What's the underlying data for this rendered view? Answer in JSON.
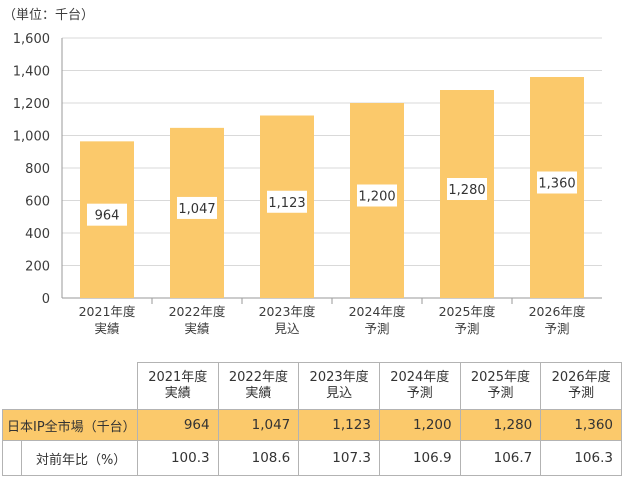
{
  "chart_data": {
    "type": "bar",
    "unit_label": "（単位：千台）",
    "categories": [
      [
        "2021年度",
        "実績"
      ],
      [
        "2022年度",
        "実績"
      ],
      [
        "2023年度",
        "見込"
      ],
      [
        "2024年度",
        "予測"
      ],
      [
        "2025年度",
        "予測"
      ],
      [
        "2026年度",
        "予測"
      ]
    ],
    "values": [
      964,
      1047,
      1123,
      1200,
      1280,
      1360
    ],
    "value_labels": [
      "964",
      "1,047",
      "1,123",
      "1,200",
      "1,280",
      "1,360"
    ],
    "ylim": [
      0,
      1600
    ],
    "yticks": [
      0,
      200,
      400,
      600,
      800,
      1000,
      1200,
      1400,
      1600
    ],
    "ytick_labels": [
      "0",
      "200",
      "400",
      "600",
      "800",
      "1,000",
      "1,200",
      "1,400",
      "1,600"
    ],
    "grid": true,
    "bar_color": "#fbc96b"
  },
  "table": {
    "headers": [
      [
        "2021年度",
        "実績"
      ],
      [
        "2022年度",
        "実績"
      ],
      [
        "2023年度",
        "見込"
      ],
      [
        "2024年度",
        "予測"
      ],
      [
        "2025年度",
        "予測"
      ],
      [
        "2026年度",
        "予測"
      ]
    ],
    "rows": [
      {
        "label": "日本IP全市場（千台）",
        "values": [
          "964",
          "1,047",
          "1,123",
          "1,200",
          "1,280",
          "1,360"
        ]
      },
      {
        "label": "対前年比（%）",
        "values": [
          "100.3",
          "108.6",
          "107.3",
          "106.9",
          "106.7",
          "106.3"
        ]
      }
    ]
  }
}
